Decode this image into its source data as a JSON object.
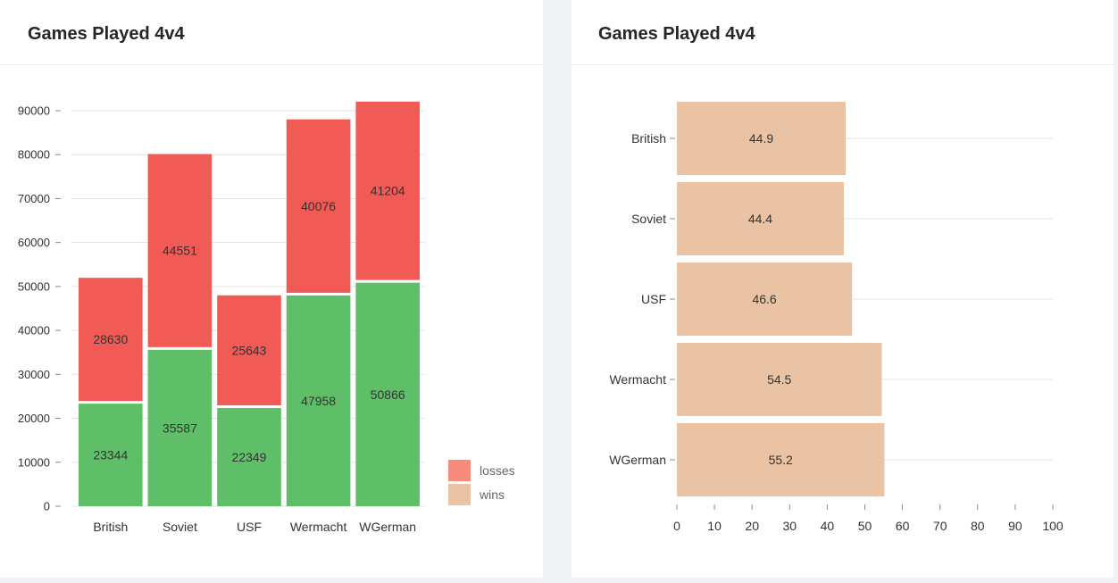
{
  "colors": {
    "wins_bar": "#5fbf68",
    "losses_bar": "#f25a55",
    "losses_legend": "#f88c7c",
    "wins_legend": "#e9c3a3",
    "win_rate_bar": "#e9c3a3",
    "grid": "#e3e3e3",
    "axis_text": "#333333"
  },
  "left_card": {
    "title": "Games Played 4v4"
  },
  "right_card": {
    "title": "Games Played 4v4"
  },
  "chart_data": [
    {
      "type": "bar",
      "stacked": true,
      "orientation": "vertical",
      "title": "Games Played 4v4",
      "categories": [
        "British",
        "Soviet",
        "USF",
        "Wermacht",
        "WGerman"
      ],
      "series": [
        {
          "name": "wins",
          "values": [
            23344,
            35587,
            22349,
            47958,
            50866
          ]
        },
        {
          "name": "losses",
          "values": [
            28630,
            44551,
            25643,
            40076,
            41204
          ]
        }
      ],
      "yticks": [
        "0",
        "10000",
        "20000",
        "30000",
        "40000",
        "50000",
        "60000",
        "70000",
        "80000",
        "90000"
      ],
      "ylim": [
        0,
        90000
      ],
      "grid": true,
      "legend": [
        "losses",
        "wins"
      ],
      "legend_position": "bottom-right"
    },
    {
      "type": "bar",
      "orientation": "horizontal",
      "title": "Games Played 4v4",
      "categories": [
        "British",
        "Soviet",
        "USF",
        "Wermacht",
        "WGerman"
      ],
      "values": [
        44.9,
        44.4,
        46.6,
        54.5,
        55.2
      ],
      "xticks": [
        "0",
        "10",
        "20",
        "30",
        "40",
        "50",
        "60",
        "70",
        "80",
        "90",
        "100"
      ],
      "xlim": [
        0,
        100
      ],
      "grid": true
    }
  ]
}
